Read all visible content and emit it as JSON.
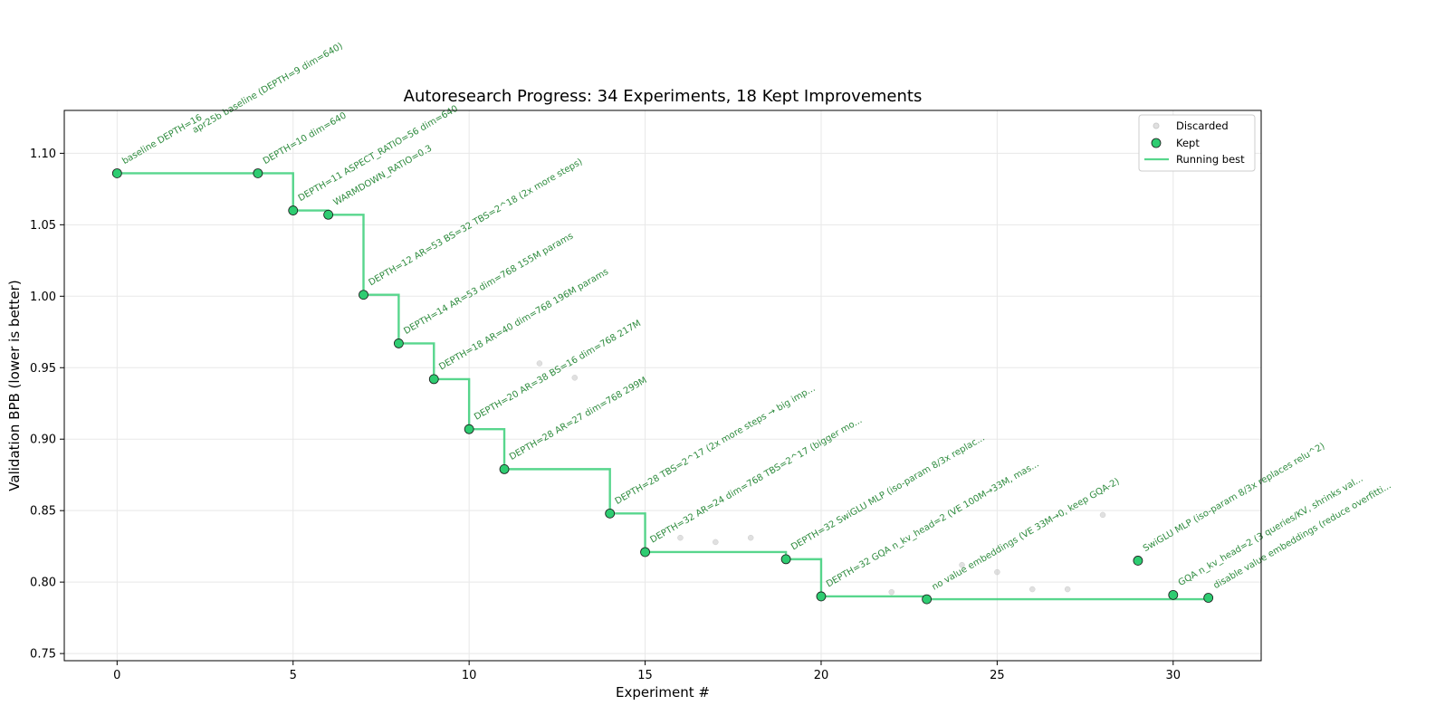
{
  "chart_data": {
    "type": "scatter",
    "title": "Autoresearch Progress: 34 Experiments, 18 Kept Improvements",
    "xlabel": "Experiment #",
    "ylabel": "Validation BPB (lower is better)",
    "xlim": [
      -1.5,
      32.5
    ],
    "ylim": [
      0.745,
      1.13
    ],
    "xticks": [
      0,
      5,
      10,
      15,
      20,
      25,
      30
    ],
    "yticks": [
      0.75,
      0.8,
      0.85,
      0.9,
      0.95,
      1.0,
      1.05,
      1.1
    ],
    "xtick_labels": [
      "0",
      "5",
      "10",
      "15",
      "20",
      "25",
      "30"
    ],
    "ytick_labels": [
      "0.75",
      "0.80",
      "0.85",
      "0.90",
      "0.95",
      "1.00",
      "1.05",
      "1.10"
    ],
    "grid": true,
    "legend_position": "top-right",
    "legend": [
      {
        "label": "Discarded",
        "marker": "discarded-dot"
      },
      {
        "label": "Kept",
        "marker": "kept-dot"
      },
      {
        "label": "Running best",
        "marker": "line"
      }
    ],
    "colors": {
      "kept": "#2ecc71",
      "kept_edge": "#1a1a1a",
      "running_best": "#2ecc71",
      "discarded": "#cccccc",
      "annotation": "#2e8b3e"
    },
    "discarded": [
      {
        "x": 12,
        "y": 0.953
      },
      {
        "x": 13,
        "y": 0.943
      },
      {
        "x": 16,
        "y": 0.831
      },
      {
        "x": 17,
        "y": 0.828
      },
      {
        "x": 18,
        "y": 0.831
      },
      {
        "x": 22,
        "y": 0.793
      },
      {
        "x": 24,
        "y": 0.812
      },
      {
        "x": 25,
        "y": 0.807
      },
      {
        "x": 26,
        "y": 0.795
      },
      {
        "x": 27,
        "y": 0.795
      },
      {
        "x": 28,
        "y": 0.847
      }
    ],
    "kept": [
      {
        "x": 0,
        "y": 1.086,
        "label": "baseline DEPTH=16"
      },
      {
        "x": 4,
        "y": 1.086,
        "label": "DEPTH=10 dim=640"
      },
      {
        "x": 5,
        "y": 1.06,
        "label": "DEPTH=11 ASPECT_RATIO=56 dim=640"
      },
      {
        "x": 6,
        "y": 1.057,
        "label": "WARMDOWN_RATIO=0.3"
      },
      {
        "x": 7,
        "y": 1.001,
        "label": "DEPTH=12 AR=53 BS=32 TBS=2^18 (2x more steps)"
      },
      {
        "x": 8,
        "y": 0.967,
        "label": "DEPTH=14 AR=53 dim=768 155M params"
      },
      {
        "x": 9,
        "y": 0.942,
        "label": "DEPTH=18 AR=40 dim=768 196M params"
      },
      {
        "x": 10,
        "y": 0.907,
        "label": "DEPTH=20 AR=38 BS=16 dim=768 217M"
      },
      {
        "x": 11,
        "y": 0.879,
        "label": "DEPTH=28 AR=27 dim=768 299M"
      },
      {
        "x": 14,
        "y": 0.848,
        "label": "DEPTH=28 TBS=2^17 (2x more steps → big imp..."
      },
      {
        "x": 15,
        "y": 0.821,
        "label": "DEPTH=32 AR=24 dim=768 TBS=2^17 (bigger mo..."
      },
      {
        "x": 19,
        "y": 0.816,
        "label": "DEPTH=32 SwiGLU MLP (iso-param 8/3x replac..."
      },
      {
        "x": 20,
        "y": 0.79,
        "label": "DEPTH=32 GQA n_kv_head=2 (VE 100M→33M, mas..."
      },
      {
        "x": 23,
        "y": 0.788,
        "label": "no value embeddings (VE 33M→0, keep GQA-2)"
      },
      {
        "x": 29,
        "y": 0.815,
        "label": "SwiGLU MLP (iso-param 8/3x replaces relu^2)"
      },
      {
        "x": 30,
        "y": 0.791,
        "label": "GQA n_kv_head=2 (3 queries/KV, shrinks val..."
      },
      {
        "x": 31,
        "y": 0.789,
        "label": "disable value embeddings (reduce overfitti..."
      }
    ],
    "extra_annotations": [
      {
        "x": 2.2,
        "y": 1.114,
        "label": "apr25b baseline (DEPTH=9 dim=640)"
      }
    ],
    "running_best": [
      {
        "x": 0,
        "y": 1.086
      },
      {
        "x": 5,
        "y": 1.06
      },
      {
        "x": 6,
        "y": 1.057
      },
      {
        "x": 7,
        "y": 1.001
      },
      {
        "x": 8,
        "y": 0.967
      },
      {
        "x": 9,
        "y": 0.942
      },
      {
        "x": 10,
        "y": 0.907
      },
      {
        "x": 11,
        "y": 0.879
      },
      {
        "x": 14,
        "y": 0.848
      },
      {
        "x": 15,
        "y": 0.821
      },
      {
        "x": 19,
        "y": 0.816
      },
      {
        "x": 20,
        "y": 0.79
      },
      {
        "x": 23,
        "y": 0.788
      },
      {
        "x": 31,
        "y": 0.788
      }
    ]
  }
}
